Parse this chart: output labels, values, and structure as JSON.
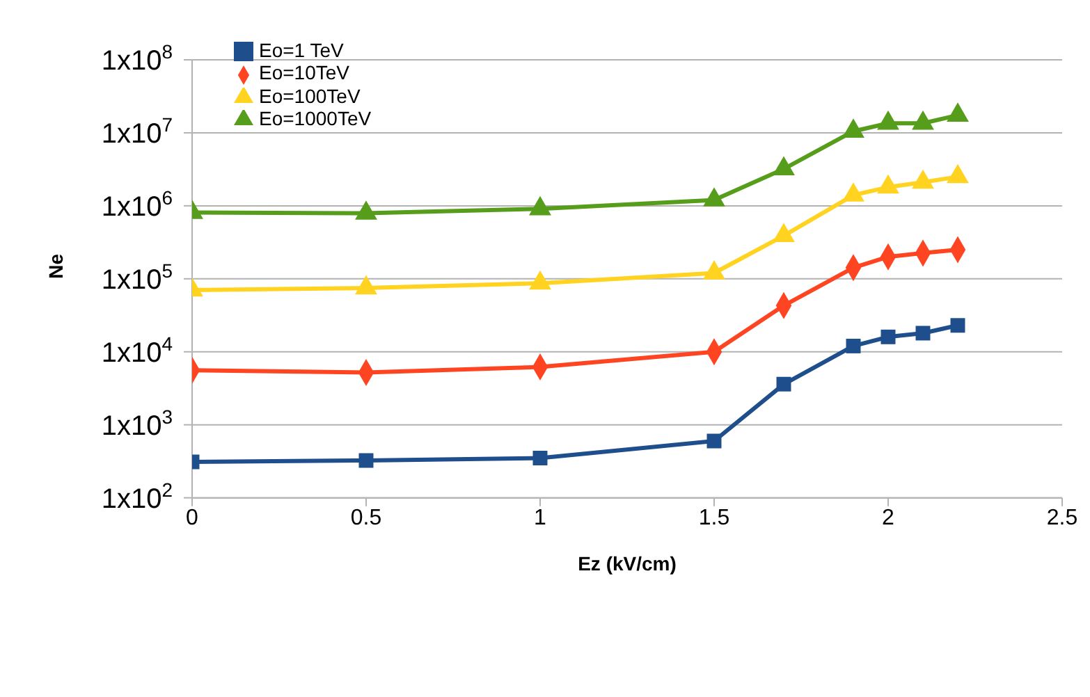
{
  "chart_data": {
    "type": "line",
    "xlabel": "Ez (kV/cm)",
    "ylabel": "Ne",
    "log": "y",
    "grid": "y",
    "legend": "top left",
    "line_style": "solid",
    "x": [
      0,
      0.5,
      1,
      1.5,
      1.7,
      1.9,
      2.0,
      2.1,
      2.2
    ],
    "xlim": [
      0,
      2.5
    ],
    "xticks": [
      0,
      0.5,
      1,
      1.5,
      2,
      2.5
    ],
    "ylim": [
      100,
      100000000
    ],
    "yticks": [
      {
        "value": 100,
        "label": "1x10$^{2}$"
      },
      {
        "value": 1000,
        "label": "1x10$^{3}$"
      },
      {
        "value": 10000,
        "label": "1x10$^{4}$"
      },
      {
        "value": 100000,
        "label": "1x10$^{5}$"
      },
      {
        "value": 1000000,
        "label": "1x10$^{6}$"
      },
      {
        "value": 10000000,
        "label": "1x10$^{7}$"
      },
      {
        "value": 100000000,
        "label": "1x10$^{8}$"
      }
    ],
    "series": [
      {
        "name": "Eo=1 TeV",
        "color": "#1f4e8c",
        "marker": "square",
        "values": [
          310,
          325,
          350,
          600,
          3600,
          12000,
          16000,
          18000,
          23000
        ]
      },
      {
        "name": "Eo=10TeV",
        "color": "#ff4422",
        "marker": "diamond",
        "values": [
          5600,
          5200,
          6200,
          10000,
          43000,
          142000,
          200000,
          225000,
          250000
        ]
      },
      {
        "name": "Eo=100TeV",
        "color": "#ffd320",
        "marker": "triangle",
        "values": [
          70000,
          75000,
          87000,
          120000,
          390000,
          1400000,
          1800000,
          2100000,
          2500000
        ]
      },
      {
        "name": "Eo=1000TeV",
        "color": "#579d1c",
        "marker": "triangle",
        "values": [
          810000,
          790000,
          910000,
          1200000,
          3200000,
          10500000,
          13500000,
          13500000,
          17400000
        ]
      }
    ]
  }
}
